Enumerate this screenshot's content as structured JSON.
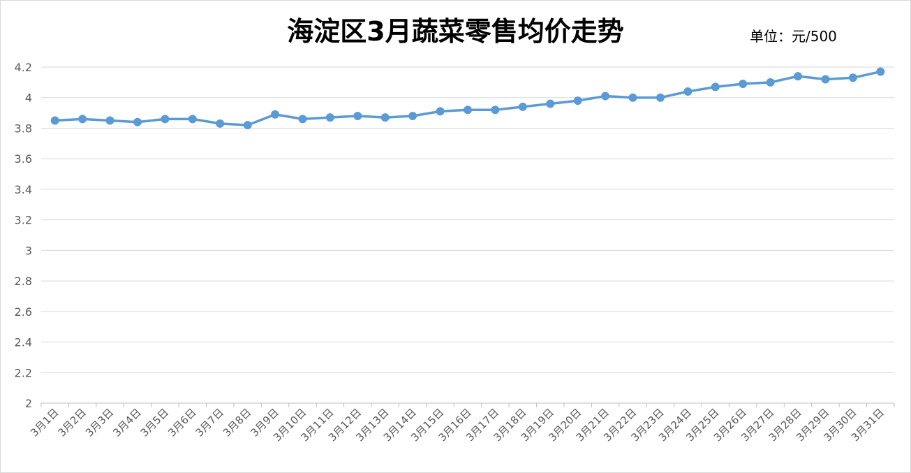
{
  "chart_data": {
    "type": "line",
    "title": "海淀区3月蔬菜零售均价走势",
    "unit_label": "单位：元/500",
    "xlabel": "",
    "ylabel": "",
    "ylim": [
      2,
      4.2
    ],
    "yticks": [
      "4.2",
      "4",
      "3.8",
      "3.6",
      "3.4",
      "3.2",
      "3",
      "2.8",
      "2.6",
      "2.4",
      "2.2",
      "2"
    ],
    "grid": true,
    "legend": "none",
    "series_color": "#5B9BD5",
    "categories": [
      "3月1日",
      "3月2日",
      "3月3日",
      "3月4日",
      "3月5日",
      "3月6日",
      "3月7日",
      "3月8日",
      "3月9日",
      "3月10日",
      "3月11日",
      "3月12日",
      "3月13日",
      "3月14日",
      "3月15日",
      "3月16日",
      "3月17日",
      "3月18日",
      "3月19日",
      "3月20日",
      "3月21日",
      "3月22日",
      "3月23日",
      "3月24日",
      "3月25日",
      "3月26日",
      "3月27日",
      "3月28日",
      "3月29日",
      "3月30日",
      "3月31日"
    ],
    "series": [
      {
        "values": [
          3.85,
          3.86,
          3.85,
          3.84,
          3.86,
          3.86,
          3.83,
          3.82,
          3.89,
          3.86,
          3.87,
          3.88,
          3.87,
          3.88,
          3.91,
          3.92,
          3.92,
          3.94,
          3.96,
          3.98,
          4.01,
          4.0,
          4.0,
          4.04,
          4.07,
          4.09,
          4.1,
          4.14,
          4.12,
          4.13,
          4.17
        ]
      }
    ]
  }
}
